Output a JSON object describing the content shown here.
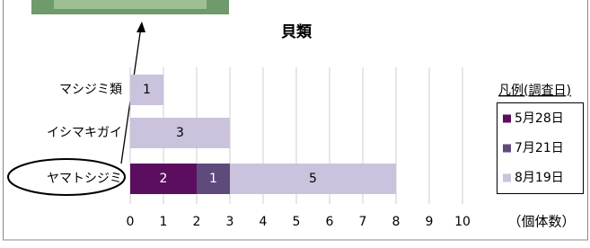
{
  "chart_data": {
    "type": "stacked-bar-horizontal",
    "title": "貝類",
    "categories": [
      "マシジミ類",
      "イシマキガイ",
      "ヤマトシジミ"
    ],
    "series": [
      {
        "name": "5月28日",
        "color": "#5c0e5e",
        "values": [
          0,
          0,
          2
        ]
      },
      {
        "name": "7月21日",
        "color": "#5f4b7b",
        "values": [
          0,
          0,
          1
        ]
      },
      {
        "name": "8月19日",
        "color": "#cbc3dd",
        "values": [
          1,
          3,
          5
        ]
      }
    ],
    "xlim": [
      0,
      10
    ],
    "xticks": [
      0,
      1,
      2,
      3,
      4,
      5,
      6,
      7,
      8,
      9,
      10
    ],
    "x_label": "（個体数）",
    "legend_title": "凡例(調査日)",
    "grid": true
  }
}
